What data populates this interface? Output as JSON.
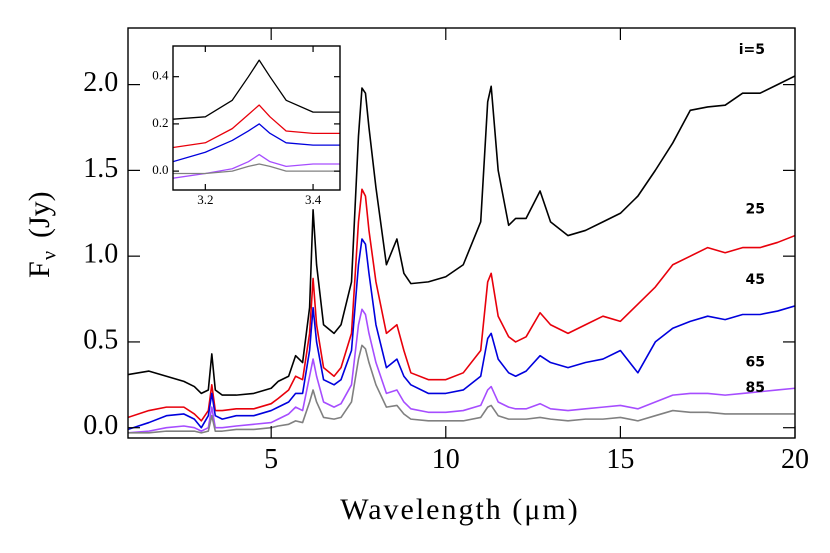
{
  "chart_data": [
    {
      "type": "line",
      "x_label": "Wavelength (μm)",
      "y_label": {
        "main": "F",
        "sub": "ν",
        "unit": "(Jy)"
      },
      "x": [
        0.9,
        1.5,
        2,
        2.5,
        2.8,
        3.0,
        3.2,
        3.3,
        3.4,
        3.6,
        4,
        4.5,
        5,
        5.2,
        5.5,
        5.7,
        5.9,
        6.1,
        6.2,
        6.3,
        6.5,
        6.8,
        7.0,
        7.3,
        7.5,
        7.6,
        7.7,
        7.8,
        8.0,
        8.3,
        8.6,
        8.8,
        9.0,
        9.5,
        10,
        10.5,
        11.0,
        11.2,
        11.3,
        11.5,
        11.8,
        12.0,
        12.3,
        12.7,
        13.0,
        13.5,
        14,
        14.5,
        15,
        15.5,
        16,
        16.5,
        17,
        17.5,
        18,
        18.5,
        19,
        19.5,
        20
      ],
      "series": [
        {
          "name": "i=5",
          "color": "#000000",
          "values": [
            0.31,
            0.33,
            0.3,
            0.27,
            0.24,
            0.2,
            0.22,
            0.43,
            0.22,
            0.19,
            0.19,
            0.2,
            0.23,
            0.27,
            0.3,
            0.42,
            0.38,
            0.7,
            1.27,
            0.95,
            0.6,
            0.55,
            0.6,
            0.85,
            1.7,
            1.98,
            1.95,
            1.75,
            1.4,
            0.95,
            1.1,
            0.9,
            0.84,
            0.85,
            0.88,
            0.95,
            1.2,
            1.9,
            1.99,
            1.5,
            1.18,
            1.22,
            1.22,
            1.38,
            1.2,
            1.12,
            1.15,
            1.2,
            1.25,
            1.35,
            1.5,
            1.66,
            1.85,
            1.87,
            1.88,
            1.95,
            1.95,
            2.0,
            2.05
          ]
        },
        {
          "name": "25",
          "color": "#e8000b",
          "values": [
            0.06,
            0.1,
            0.12,
            0.12,
            0.08,
            0.04,
            0.1,
            0.25,
            0.1,
            0.1,
            0.11,
            0.11,
            0.14,
            0.17,
            0.22,
            0.3,
            0.28,
            0.55,
            0.87,
            0.6,
            0.35,
            0.3,
            0.35,
            0.55,
            1.2,
            1.39,
            1.35,
            1.15,
            0.85,
            0.55,
            0.6,
            0.45,
            0.32,
            0.28,
            0.28,
            0.32,
            0.45,
            0.85,
            0.9,
            0.65,
            0.53,
            0.5,
            0.53,
            0.67,
            0.6,
            0.55,
            0.6,
            0.65,
            0.62,
            0.72,
            0.82,
            0.95,
            1.0,
            1.05,
            1.02,
            1.05,
            1.05,
            1.08,
            1.12
          ]
        },
        {
          "name": "45",
          "color": "#0000dd",
          "values": [
            -0.01,
            0.03,
            0.07,
            0.08,
            0.05,
            0.0,
            0.07,
            0.2,
            0.07,
            0.05,
            0.07,
            0.07,
            0.1,
            0.12,
            0.15,
            0.2,
            0.2,
            0.45,
            0.7,
            0.5,
            0.28,
            0.25,
            0.28,
            0.45,
            0.95,
            1.1,
            1.07,
            0.9,
            0.6,
            0.35,
            0.4,
            0.3,
            0.25,
            0.2,
            0.2,
            0.22,
            0.3,
            0.52,
            0.55,
            0.4,
            0.32,
            0.3,
            0.33,
            0.42,
            0.38,
            0.35,
            0.38,
            0.4,
            0.45,
            0.32,
            0.5,
            0.58,
            0.62,
            0.65,
            0.63,
            0.66,
            0.66,
            0.68,
            0.71
          ]
        },
        {
          "name": "65",
          "color": "#a64dff",
          "values": [
            -0.03,
            -0.02,
            0.0,
            0.01,
            0.0,
            -0.02,
            0.0,
            0.12,
            0.0,
            0.0,
            0.01,
            0.02,
            0.03,
            0.05,
            0.08,
            0.12,
            0.1,
            0.3,
            0.4,
            0.3,
            0.15,
            0.12,
            0.14,
            0.25,
            0.6,
            0.69,
            0.66,
            0.55,
            0.38,
            0.2,
            0.22,
            0.15,
            0.11,
            0.09,
            0.09,
            0.1,
            0.13,
            0.22,
            0.24,
            0.15,
            0.12,
            0.11,
            0.11,
            0.14,
            0.11,
            0.1,
            0.11,
            0.12,
            0.13,
            0.11,
            0.15,
            0.19,
            0.2,
            0.2,
            0.19,
            0.2,
            0.21,
            0.22,
            0.23
          ]
        },
        {
          "name": "85",
          "color": "#808080",
          "values": [
            -0.03,
            -0.03,
            -0.02,
            -0.02,
            -0.02,
            -0.03,
            -0.02,
            0.07,
            -0.02,
            -0.02,
            -0.01,
            -0.01,
            0.0,
            0.01,
            0.02,
            0.04,
            0.03,
            0.15,
            0.22,
            0.15,
            0.06,
            0.05,
            0.06,
            0.15,
            0.4,
            0.48,
            0.46,
            0.38,
            0.25,
            0.12,
            0.13,
            0.08,
            0.05,
            0.04,
            0.04,
            0.04,
            0.06,
            0.12,
            0.13,
            0.07,
            0.05,
            0.05,
            0.05,
            0.06,
            0.05,
            0.04,
            0.05,
            0.05,
            0.06,
            0.04,
            0.07,
            0.1,
            0.09,
            0.09,
            0.08,
            0.08,
            0.08,
            0.08,
            0.08
          ]
        }
      ],
      "xlim": [
        0.9,
        20
      ],
      "xticks": [
        5,
        10,
        15,
        20
      ],
      "ylim": [
        -0.06,
        2.33
      ],
      "yticks": [
        {
          "value": 0,
          "label": "0.0"
        },
        {
          "value": 0.5,
          "label": "0.5"
        },
        {
          "value": 1,
          "label": "1.0"
        },
        {
          "value": 1.5,
          "label": "1.5"
        },
        {
          "value": 2,
          "label": "2.0"
        }
      ]
    },
    {
      "type": "line",
      "x": [
        3.14,
        3.2,
        3.25,
        3.28,
        3.3,
        3.32,
        3.35,
        3.4,
        3.45
      ],
      "series": [
        {
          "color": "#000000",
          "values": [
            0.22,
            0.23,
            0.3,
            0.4,
            0.47,
            0.4,
            0.3,
            0.25,
            0.25
          ]
        },
        {
          "color": "#e8000b",
          "values": [
            0.1,
            0.12,
            0.18,
            0.24,
            0.28,
            0.23,
            0.17,
            0.16,
            0.16
          ]
        },
        {
          "color": "#0000dd",
          "values": [
            0.04,
            0.08,
            0.13,
            0.17,
            0.2,
            0.16,
            0.12,
            0.11,
            0.11
          ]
        },
        {
          "color": "#a64dff",
          "values": [
            -0.03,
            -0.01,
            0.01,
            0.04,
            0.07,
            0.04,
            0.02,
            0.03,
            0.03
          ]
        },
        {
          "color": "#808080",
          "values": [
            -0.01,
            -0.01,
            0.0,
            0.02,
            0.03,
            0.02,
            0.0,
            0.0,
            0.0
          ]
        }
      ],
      "xlim": [
        3.14,
        3.45
      ],
      "xticks": [
        3.2,
        3.4
      ],
      "ylim": [
        -0.08,
        0.53
      ],
      "yticks": [
        {
          "value": 0,
          "label": "0.0"
        },
        {
          "value": 0.2,
          "label": "0.2"
        },
        {
          "value": 0.4,
          "label": "0.4"
        }
      ]
    }
  ]
}
